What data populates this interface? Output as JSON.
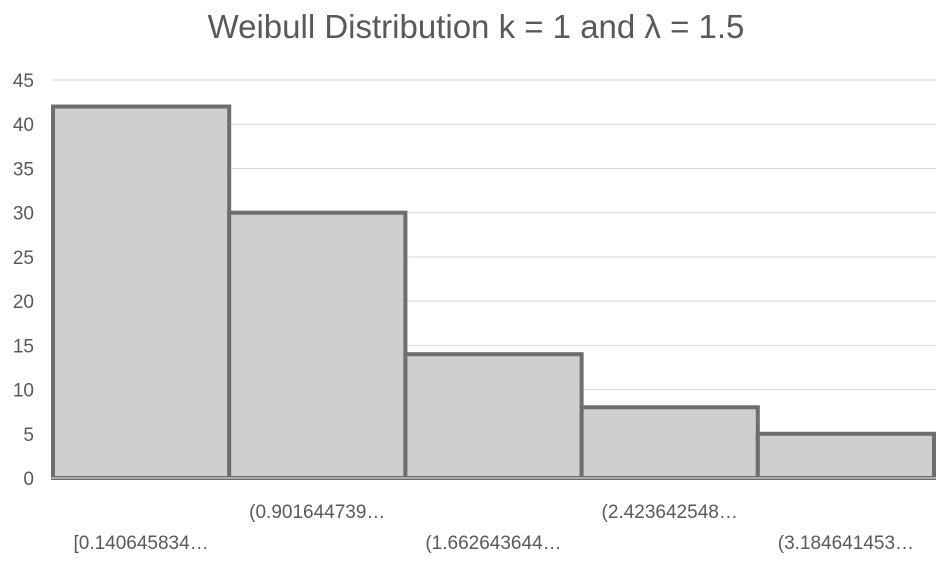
{
  "chart_data": {
    "type": "bar",
    "title": "Weibull Distribution k = 1 and λ = 1.5",
    "xlabel": "",
    "ylabel": "",
    "categories": [
      "[0.140645834…",
      "(0.901644739…",
      "(1.662643644…",
      "(2.423642548…",
      "(3.184641453…"
    ],
    "values": [
      42,
      30,
      14,
      8,
      5
    ],
    "ylim": [
      0,
      45
    ],
    "yticks": [
      "0",
      "5",
      "10",
      "15",
      "20",
      "25",
      "30",
      "35",
      "40",
      "45"
    ],
    "grid": true,
    "legend": "none",
    "bar_fill": "#d0cece",
    "bar_stroke": "#6e6e6e",
    "grid_color": "#d9d9d9",
    "axis_color": "#bfbfbf",
    "text_color": "#595959"
  }
}
